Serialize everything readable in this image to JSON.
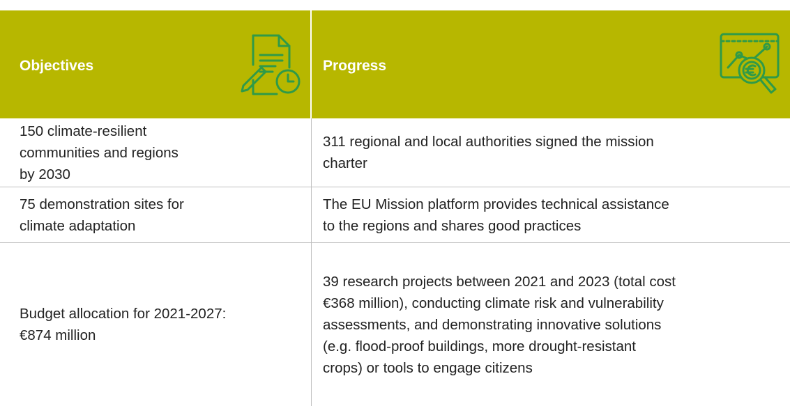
{
  "table": {
    "header": [
      "Objectives",
      "Progress"
    ],
    "rows": [
      [
        [
          "150 climate-resilient",
          "communities and regions",
          "by 2030"
        ],
        [
          "311 regional and local authorities signed the mission",
          "charter"
        ]
      ],
      [
        [
          "75 demonstration sites for",
          "climate adaptation"
        ],
        [
          "The EU Mission platform provides technical assistance",
          "to the regions and shares good practices"
        ]
      ],
      [
        [
          "Budget allocation for 2021-2027:",
          "€874 million"
        ],
        [
          "39 research projects between 2021 and 2023 (total cost",
          "€368 million), conducting climate risk and vulnerability",
          "assessments, and demonstrating innovative solutions",
          "(e.g. flood-proof buildings, more drought-resistant",
          "crops) or tools to engage citizens"
        ]
      ]
    ]
  }
}
